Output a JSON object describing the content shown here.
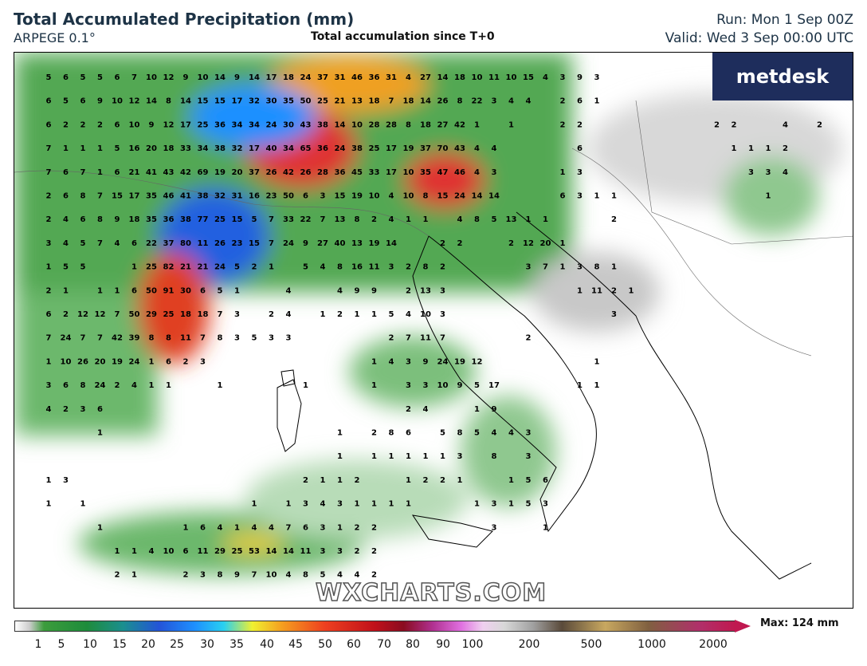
{
  "header": {
    "title": "Total Accumulated Precipitation (mm)",
    "model": "ARPEGE 0.1°",
    "subtitle": "Total accumulation since T+0",
    "run": "Run: Mon 1 Sep 00Z",
    "valid": "Valid: Wed 3 Sep 00:00 UTC"
  },
  "logo": "metdesk",
  "watermark": "WXCHARTS.COM",
  "colorbar": {
    "labels": [
      1,
      5,
      10,
      15,
      20,
      25,
      30,
      35,
      40,
      45,
      50,
      60,
      70,
      80,
      90,
      100,
      200,
      500,
      1000,
      2000
    ],
    "max": "Max: 124 mm"
  },
  "grid": [
    [
      5,
      6,
      5,
      5,
      6,
      7,
      10,
      12,
      9,
      10,
      14,
      9,
      14,
      17,
      18,
      24,
      37,
      31,
      46,
      36,
      31,
      4,
      27,
      14,
      18,
      10,
      11,
      10,
      15,
      4,
      3,
      9,
      3
    ],
    [
      6,
      5,
      6,
      9,
      10,
      12,
      14,
      8,
      14,
      15,
      15,
      17,
      32,
      30,
      35,
      50,
      25,
      21,
      13,
      18,
      7,
      18,
      14,
      26,
      8,
      22,
      3,
      4,
      4,
      null,
      2,
      6,
      1
    ],
    [
      6,
      2,
      2,
      2,
      6,
      10,
      9,
      12,
      17,
      25,
      36,
      34,
      34,
      24,
      30,
      43,
      38,
      14,
      10,
      28,
      28,
      8,
      18,
      27,
      42,
      1,
      null,
      1,
      null,
      null,
      2,
      2,
      null,
      null,
      null,
      null,
      null,
      null,
      null,
      2,
      2,
      null,
      null,
      4,
      null,
      2
    ],
    [
      7,
      1,
      1,
      1,
      5,
      16,
      20,
      18,
      33,
      34,
      38,
      32,
      17,
      40,
      34,
      65,
      36,
      24,
      38,
      25,
      17,
      19,
      37,
      70,
      43,
      4,
      4,
      null,
      null,
      null,
      null,
      6,
      null,
      null,
      null,
      null,
      null,
      null,
      null,
      null,
      1,
      1,
      1,
      2
    ],
    [
      7,
      6,
      7,
      1,
      6,
      21,
      41,
      43,
      42,
      69,
      19,
      20,
      37,
      26,
      42,
      26,
      28,
      36,
      45,
      33,
      17,
      10,
      35,
      47,
      46,
      4,
      3,
      null,
      null,
      null,
      1,
      3,
      null,
      null,
      null,
      null,
      null,
      null,
      null,
      null,
      null,
      3,
      3,
      4
    ],
    [
      2,
      6,
      8,
      7,
      15,
      17,
      35,
      46,
      41,
      38,
      32,
      31,
      16,
      23,
      50,
      6,
      3,
      15,
      19,
      10,
      4,
      10,
      8,
      15,
      24,
      14,
      14,
      null,
      null,
      null,
      6,
      3,
      1,
      1,
      null,
      null,
      null,
      null,
      null,
      null,
      null,
      null,
      1
    ],
    [
      2,
      4,
      6,
      8,
      9,
      18,
      35,
      36,
      38,
      77,
      25,
      15,
      5,
      7,
      33,
      22,
      7,
      13,
      8,
      2,
      4,
      1,
      1,
      null,
      4,
      8,
      5,
      13,
      1,
      1,
      null,
      null,
      null,
      2
    ],
    [
      3,
      4,
      5,
      7,
      4,
      6,
      22,
      37,
      80,
      11,
      26,
      23,
      15,
      7,
      24,
      9,
      27,
      40,
      13,
      19,
      14,
      null,
      null,
      2,
      2,
      null,
      null,
      2,
      12,
      20,
      1
    ],
    [
      1,
      5,
      5,
      null,
      null,
      1,
      25,
      82,
      21,
      21,
      24,
      5,
      2,
      1,
      null,
      5,
      4,
      8,
      16,
      11,
      3,
      2,
      8,
      2,
      null,
      null,
      null,
      null,
      3,
      7,
      1,
      3,
      8,
      1
    ],
    [
      2,
      1,
      null,
      1,
      1,
      6,
      50,
      91,
      30,
      6,
      5,
      1,
      null,
      null,
      4,
      null,
      null,
      4,
      9,
      9,
      null,
      2,
      13,
      3,
      null,
      null,
      null,
      null,
      null,
      null,
      null,
      1,
      11,
      2,
      1
    ],
    [
      6,
      2,
      12,
      12,
      7,
      50,
      29,
      25,
      18,
      18,
      7,
      3,
      null,
      2,
      4,
      null,
      1,
      2,
      1,
      1,
      5,
      4,
      10,
      3,
      null,
      null,
      null,
      null,
      null,
      null,
      null,
      null,
      null,
      3
    ],
    [
      7,
      24,
      7,
      7,
      42,
      39,
      8,
      8,
      11,
      7,
      8,
      3,
      5,
      3,
      3,
      null,
      null,
      null,
      null,
      null,
      2,
      7,
      11,
      7,
      null,
      null,
      null,
      null,
      2
    ],
    [
      1,
      10,
      26,
      20,
      19,
      24,
      1,
      6,
      2,
      3,
      null,
      null,
      null,
      null,
      null,
      null,
      null,
      null,
      null,
      1,
      4,
      3,
      9,
      24,
      19,
      12,
      null,
      null,
      null,
      null,
      null,
      null,
      1
    ],
    [
      3,
      6,
      8,
      24,
      2,
      4,
      1,
      1,
      null,
      null,
      1,
      null,
      null,
      null,
      null,
      1,
      null,
      null,
      null,
      1,
      null,
      3,
      3,
      10,
      9,
      5,
      17,
      null,
      null,
      null,
      null,
      1,
      1
    ],
    [
      4,
      2,
      3,
      6,
      null,
      null,
      null,
      null,
      null,
      null,
      null,
      null,
      null,
      null,
      null,
      null,
      null,
      null,
      null,
      null,
      null,
      2,
      4,
      null,
      null,
      1,
      9
    ],
    [
      null,
      null,
      null,
      1,
      null,
      null,
      null,
      null,
      null,
      null,
      null,
      null,
      null,
      null,
      null,
      null,
      null,
      1,
      null,
      2,
      8,
      6,
      null,
      5,
      8,
      5,
      4,
      4,
      3
    ],
    [
      null,
      null,
      null,
      null,
      null,
      null,
      null,
      null,
      null,
      null,
      null,
      null,
      null,
      null,
      null,
      null,
      null,
      1,
      null,
      1,
      1,
      1,
      1,
      1,
      3,
      null,
      8,
      null,
      3
    ],
    [
      1,
      3,
      null,
      null,
      null,
      null,
      null,
      null,
      null,
      null,
      null,
      null,
      null,
      null,
      null,
      2,
      1,
      1,
      2,
      null,
      null,
      1,
      2,
      2,
      1,
      null,
      null,
      1,
      5,
      6
    ],
    [
      1,
      null,
      1,
      null,
      null,
      null,
      null,
      null,
      null,
      null,
      null,
      null,
      1,
      null,
      1,
      3,
      4,
      3,
      1,
      1,
      1,
      1,
      null,
      null,
      null,
      1,
      3,
      1,
      5,
      3
    ],
    [
      null,
      null,
      null,
      1,
      null,
      null,
      null,
      null,
      1,
      6,
      4,
      1,
      4,
      4,
      7,
      6,
      3,
      1,
      2,
      2,
      null,
      null,
      null,
      null,
      null,
      null,
      3,
      null,
      null,
      1
    ],
    [
      null,
      null,
      null,
      null,
      1,
      1,
      4,
      10,
      6,
      11,
      29,
      25,
      53,
      14,
      14,
      11,
      3,
      3,
      2,
      2
    ],
    [
      null,
      null,
      null,
      null,
      2,
      1,
      null,
      null,
      2,
      3,
      8,
      9,
      7,
      10,
      4,
      8,
      5,
      4,
      4,
      2
    ]
  ]
}
